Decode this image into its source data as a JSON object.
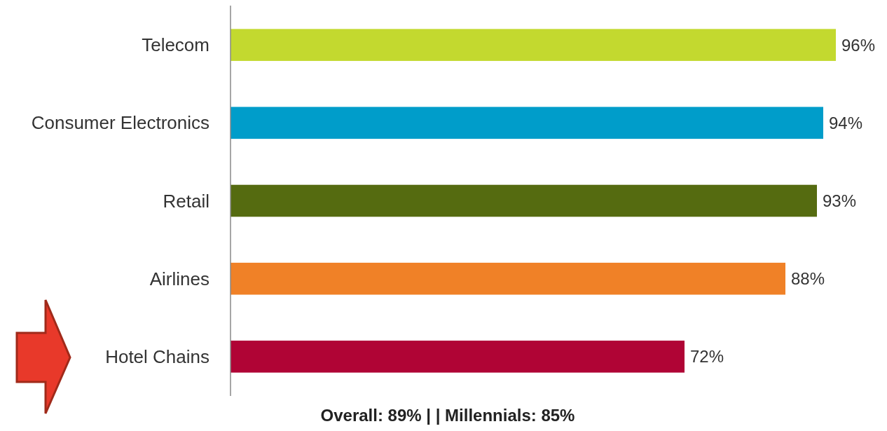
{
  "chart_data": {
    "type": "bar",
    "orientation": "horizontal",
    "categories": [
      "Telecom",
      "Consumer Electronics",
      "Retail",
      "Airlines",
      "Hotel Chains"
    ],
    "values": [
      96,
      94,
      93,
      88,
      72
    ],
    "colors": [
      "#c3d92f",
      "#009dca",
      "#556b10",
      "#f08127",
      "#b00435"
    ],
    "value_labels": [
      "96%",
      "94%",
      "93%",
      "88%",
      "72%"
    ],
    "annotations": [
      "Overall: 89% | | Millennials: 85%"
    ]
  }
}
